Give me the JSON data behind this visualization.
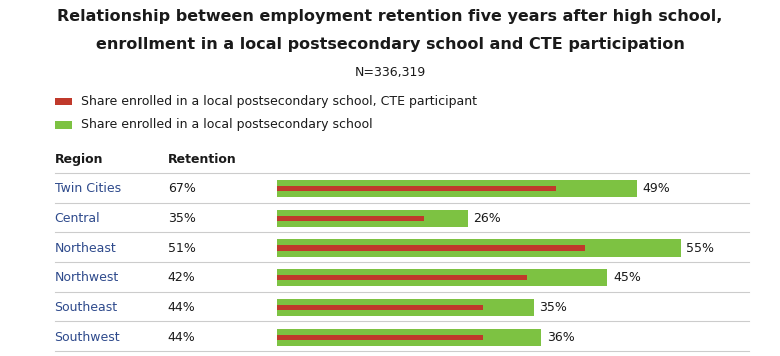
{
  "title_line1": "Relationship between employment retention five years after high school,",
  "title_line2": "enrollment in a local postsecondary school and CTE participation",
  "subtitle": "N=336,319",
  "legend": [
    {
      "label": "Share enrolled in a local postsecondary school, CTE participant",
      "color": "#c0392b"
    },
    {
      "label": "Share enrolled in a local postsecondary school",
      "color": "#7dc242"
    }
  ],
  "col_headers": [
    "Region",
    "Retention"
  ],
  "regions": [
    "Twin Cities",
    "Central",
    "Northeast",
    "Northwest",
    "Southeast",
    "Southwest"
  ],
  "retention": [
    "67%",
    "35%",
    "51%",
    "42%",
    "44%",
    "44%"
  ],
  "green_values": [
    49,
    26,
    55,
    45,
    35,
    36
  ],
  "red_values": [
    38,
    20,
    42,
    34,
    28,
    28
  ],
  "green_labels": [
    "49%",
    "26%",
    "55%",
    "45%",
    "35%",
    "36%"
  ],
  "green_color": "#7dc242",
  "red_color": "#c0392b",
  "bar_max": 60,
  "region_color": "#2e4a8c",
  "header_color": "#1a1a1a",
  "bg_color": "#ffffff",
  "title_color": "#1a1a1a",
  "subtitle_color": "#1a1a1a",
  "line_color": "#cccccc",
  "title_fontsize": 11.5,
  "subtitle_fontsize": 9,
  "legend_fontsize": 9,
  "table_fontsize": 9
}
